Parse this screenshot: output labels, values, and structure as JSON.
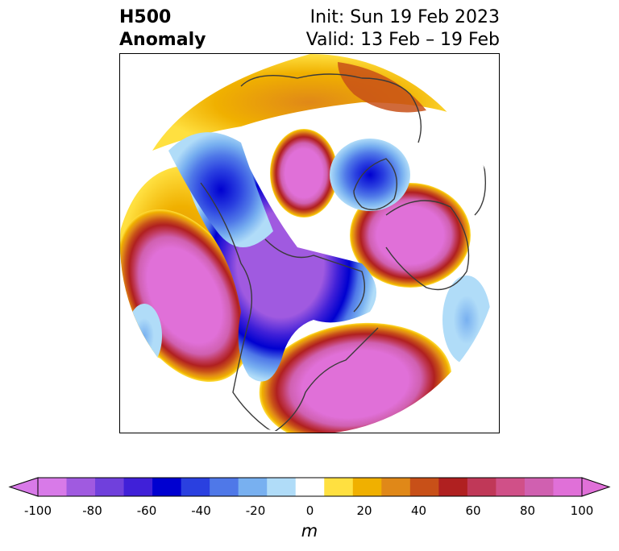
{
  "title": {
    "left_line1": "H500",
    "left_line2": "Anomaly",
    "right_line1": "Init: Sun 19 Feb 2023",
    "right_line2": "Valid: 13 Feb – 19 Feb"
  },
  "colorbar": {
    "ticks": [
      "-100",
      "-80",
      "-60",
      "-40",
      "-20",
      "0",
      "20",
      "40",
      "60",
      "80",
      "100"
    ],
    "unit": "m",
    "colors": [
      "#d87ae8",
      "#a05ae0",
      "#7040dc",
      "#4020d8",
      "#0000d0",
      "#2a40e0",
      "#4f78e8",
      "#78b0f0",
      "#b0dcf8",
      "#ffffff",
      "#ffe040",
      "#f0b000",
      "#e08818",
      "#c85018",
      "#b02020",
      "#c03858",
      "#d05088",
      "#d060b0",
      "#e070d8"
    ],
    "extend_low": "#d87ae8",
    "extend_high": "#e070d8"
  },
  "map": {
    "projection": "north-polar-stereographic",
    "field": "500 hPa geopotential height anomaly"
  }
}
